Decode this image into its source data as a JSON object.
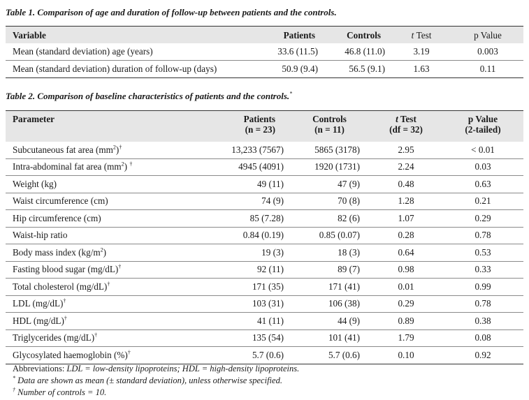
{
  "table1": {
    "caption_label": "Table 1.",
    "caption_text": "Comparison of age and duration of follow-up between patients and the controls.",
    "headers": {
      "variable": "Variable",
      "patients": "Patients",
      "controls": "Controls",
      "t_prefix": "t",
      "t_suffix": "Test",
      "p": "p Value"
    },
    "rows": [
      {
        "label": "Mean (standard deviation) age (years)",
        "patients": "33.6 (11.5)",
        "controls": "46.8 (11.0)",
        "t": "3.19",
        "p": "0.003"
      },
      {
        "label": "Mean (standard deviation) duration of follow-up (days)",
        "patients": "50.9 (9.4)",
        "controls": "56.5 (9.1)",
        "t": "1.63",
        "p": "0.11"
      }
    ]
  },
  "table2": {
    "caption_label": "Table 2.",
    "caption_text": "Comparison of baseline characteristics of patients and the controls.",
    "caption_mark": "*",
    "headers": {
      "parameter": "Parameter",
      "patients": "Patients",
      "patients_n": "(n = 23)",
      "controls": "Controls",
      "controls_n": "(n = 11)",
      "t_prefix": "t",
      "t_suffix": "Test",
      "t_df": "(df = 32)",
      "p": "p Value",
      "p_sub": "(2-tailed)"
    },
    "rows": [
      {
        "label": "Subcutaneous fat area (mm",
        "sup1": "2",
        "tail": ")",
        "sup2": "†",
        "patients": "13,233 (7567)",
        "controls": "5865 (3178)",
        "t": "2.95",
        "p": "< 0.01"
      },
      {
        "label": "Intra-abdominal fat area (mm",
        "sup1": "2",
        "tail": ") ",
        "sup2": "†",
        "patients": "4945 (4091)",
        "controls": "1920 (1731)",
        "t": "2.24",
        "p": "0.03"
      },
      {
        "label": "Weight (kg)",
        "patients": "49 (11)",
        "controls": "47 (9)",
        "t": "0.48",
        "p": "0.63"
      },
      {
        "label": "Waist circumference (cm)",
        "patients": "74 (9)",
        "controls": "70 (8)",
        "t": "1.28",
        "p": "0.21"
      },
      {
        "label": "Hip circumference (cm)",
        "patients": "85 (7.28)",
        "controls": "82 (6)",
        "t": "1.07",
        "p": "0.29"
      },
      {
        "label": "Waist-hip ratio",
        "patients": "0.84 (0.19)",
        "controls": "0.85 (0.07)",
        "t": "0.28",
        "p": "0.78"
      },
      {
        "label": "Body mass index (kg/m",
        "sup1": "2",
        "tail": ")",
        "patients": "19 (3)",
        "controls": "18 (3)",
        "t": "0.64",
        "p": "0.53"
      },
      {
        "label": "Fasting blood sugar (mg/dL)",
        "sup2": "†",
        "patients": "92 (11)",
        "controls": "89 (7)",
        "t": "0.98",
        "p": "0.33"
      },
      {
        "label": "Total cholesterol (mg/dL)",
        "sup2": "†",
        "patients": "171 (35)",
        "controls": "171 (41)",
        "t": "0.01",
        "p": "0.99"
      },
      {
        "label": "LDL (mg/dL)",
        "sup2": "†",
        "patients": "103 (31)",
        "controls": "106 (38)",
        "t": "0.29",
        "p": "0.78"
      },
      {
        "label": "HDL (mg/dL)",
        "sup2": "†",
        "patients": "41 (11)",
        "controls": "44 (9)",
        "t": "0.89",
        "p": "0.38"
      },
      {
        "label": "Triglycerides (mg/dL)",
        "sup2": "†",
        "patients": "135 (54)",
        "controls": "101 (41)",
        "t": "1.79",
        "p": "0.08"
      },
      {
        "label": "Glycosylated haemoglobin (%)",
        "sup2": "†",
        "patients": "5.7 (0.6)",
        "controls": "5.7 (0.6)",
        "t": "0.10",
        "p": "0.92"
      }
    ]
  },
  "footnotes": {
    "abbrev_label": "Abbreviations: ",
    "abbrev_text": "LDL = low-density lipoproteins; HDL = high-density lipoproteins.",
    "note1_mark": "*",
    "note1_text": " Data are shown as mean (± standard deviation), unless otherwise specified.",
    "note2_mark": "†",
    "note2_text": " Number of controls = 10."
  }
}
